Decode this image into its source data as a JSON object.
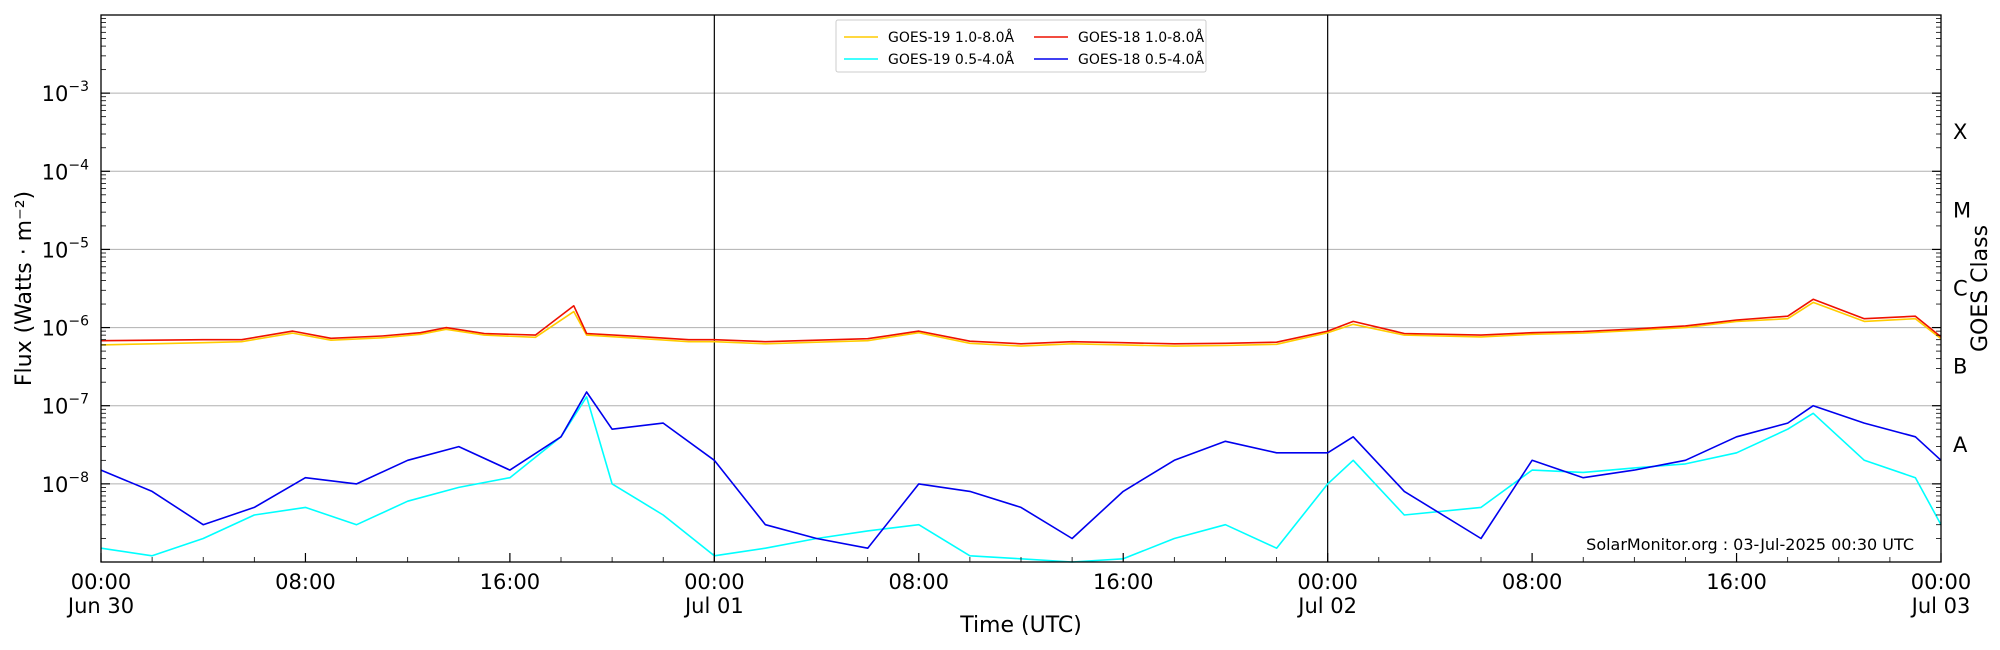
{
  "chart_data": {
    "type": "line",
    "xlabel": "Time (UTC)",
    "ylabel": "Flux (Watts · m⁻²)",
    "ylabel_right": "GOES Class",
    "yscale": "log",
    "xlim": [
      "2025-06-30T00:00",
      "2025-07-03T00:00"
    ],
    "ylim": [
      1e-09,
      0.01
    ],
    "grid": "horizontal",
    "legend_position": "top-center",
    "watermark": "SolarMonitor.org : 03-Jul-2025 00:30 UTC",
    "day_boundaries": [
      "2025-07-01T00:00",
      "2025-07-02T00:00"
    ],
    "x_ticks": [
      {
        "time": "2025-06-30T00:00",
        "label": "00:00",
        "sublabel": "Jun 30"
      },
      {
        "time": "2025-06-30T08:00",
        "label": "08:00",
        "sublabel": ""
      },
      {
        "time": "2025-06-30T16:00",
        "label": "16:00",
        "sublabel": ""
      },
      {
        "time": "2025-07-01T00:00",
        "label": "00:00",
        "sublabel": "Jul 01"
      },
      {
        "time": "2025-07-01T08:00",
        "label": "08:00",
        "sublabel": ""
      },
      {
        "time": "2025-07-01T16:00",
        "label": "16:00",
        "sublabel": ""
      },
      {
        "time": "2025-07-02T00:00",
        "label": "00:00",
        "sublabel": "Jul 02"
      },
      {
        "time": "2025-07-02T08:00",
        "label": "08:00",
        "sublabel": ""
      },
      {
        "time": "2025-07-02T16:00",
        "label": "16:00",
        "sublabel": ""
      },
      {
        "time": "2025-07-03T00:00",
        "label": "00:00",
        "sublabel": "Jul 03"
      }
    ],
    "y_ticks": [
      {
        "value": 1e-08,
        "base": "10",
        "exp": "−8"
      },
      {
        "value": 1e-07,
        "base": "10",
        "exp": "−7"
      },
      {
        "value": 1e-06,
        "base": "10",
        "exp": "−6"
      },
      {
        "value": 1e-05,
        "base": "10",
        "exp": "−5"
      },
      {
        "value": 0.0001,
        "base": "10",
        "exp": "−4"
      },
      {
        "value": 0.001,
        "base": "10",
        "exp": "−3"
      }
    ],
    "goes_classes": [
      {
        "label": "A",
        "value": 3.16e-08
      },
      {
        "label": "B",
        "value": 3.16e-07
      },
      {
        "label": "C",
        "value": 3.16e-06
      },
      {
        "label": "M",
        "value": 3.16e-05
      },
      {
        "label": "X",
        "value": 0.000316
      }
    ],
    "series": [
      {
        "name": "GOES-19 1.0-8.0Å",
        "color": "#ffcc00",
        "x": [
          "2025-06-30T00:00",
          "2025-06-30T02:00",
          "2025-06-30T04:00",
          "2025-06-30T05:30",
          "2025-06-30T07:30",
          "2025-06-30T09:00",
          "2025-06-30T11:00",
          "2025-06-30T12:30",
          "2025-06-30T13:30",
          "2025-06-30T15:00",
          "2025-06-30T17:00",
          "2025-06-30T18:30",
          "2025-06-30T19:00",
          "2025-06-30T21:00",
          "2025-06-30T23:00",
          "2025-07-01T00:00",
          "2025-07-01T02:00",
          "2025-07-01T04:00",
          "2025-07-01T06:00",
          "2025-07-01T08:00",
          "2025-07-01T10:00",
          "2025-07-01T12:00",
          "2025-07-01T14:00",
          "2025-07-01T16:00",
          "2025-07-01T18:00",
          "2025-07-01T20:00",
          "2025-07-01T22:00",
          "2025-07-02T00:00",
          "2025-07-02T01:00",
          "2025-07-02T03:00",
          "2025-07-02T06:00",
          "2025-07-02T08:00",
          "2025-07-02T10:00",
          "2025-07-02T12:00",
          "2025-07-02T14:00",
          "2025-07-02T16:00",
          "2025-07-02T18:00",
          "2025-07-02T19:00",
          "2025-07-02T21:00",
          "2025-07-02T23:00",
          "2025-07-03T00:00"
        ],
        "values": [
          6e-07,
          6.2e-07,
          6.4e-07,
          6.6e-07,
          8.5e-07,
          6.9e-07,
          7.4e-07,
          8.2e-07,
          9.5e-07,
          8e-07,
          7.5e-07,
          1.6e-06,
          8e-07,
          7.3e-07,
          6.6e-07,
          6.6e-07,
          6.2e-07,
          6.5e-07,
          6.8e-07,
          8.6e-07,
          6.3e-07,
          5.8e-07,
          6.2e-07,
          6e-07,
          5.8e-07,
          5.9e-07,
          6.1e-07,
          8.6e-07,
          1.1e-06,
          8e-07,
          7.6e-07,
          8.2e-07,
          8.5e-07,
          9.2e-07,
          1e-06,
          1.2e-06,
          1.3e-06,
          2.1e-06,
          1.2e-06,
          1.3e-06,
          7.2e-07
        ]
      },
      {
        "name": "GOES-18 1.0-8.0Å",
        "color": "#ee1100",
        "x": [
          "2025-06-30T00:00",
          "2025-06-30T02:00",
          "2025-06-30T04:00",
          "2025-06-30T05:30",
          "2025-06-30T07:30",
          "2025-06-30T09:00",
          "2025-06-30T11:00",
          "2025-06-30T12:30",
          "2025-06-30T13:30",
          "2025-06-30T15:00",
          "2025-06-30T17:00",
          "2025-06-30T18:30",
          "2025-06-30T19:00",
          "2025-06-30T21:00",
          "2025-06-30T23:00",
          "2025-07-01T00:00",
          "2025-07-01T02:00",
          "2025-07-01T04:00",
          "2025-07-01T06:00",
          "2025-07-01T08:00",
          "2025-07-01T10:00",
          "2025-07-01T12:00",
          "2025-07-01T14:00",
          "2025-07-01T16:00",
          "2025-07-01T18:00",
          "2025-07-01T20:00",
          "2025-07-01T22:00",
          "2025-07-02T00:00",
          "2025-07-02T01:00",
          "2025-07-02T03:00",
          "2025-07-02T06:00",
          "2025-07-02T08:00",
          "2025-07-02T10:00",
          "2025-07-02T12:00",
          "2025-07-02T14:00",
          "2025-07-02T16:00",
          "2025-07-02T18:00",
          "2025-07-02T19:00",
          "2025-07-02T21:00",
          "2025-07-02T23:00",
          "2025-07-03T00:00"
        ],
        "values": [
          6.8e-07,
          6.9e-07,
          7e-07,
          7e-07,
          9e-07,
          7.3e-07,
          7.8e-07,
          8.6e-07,
          1e-06,
          8.4e-07,
          8e-07,
          1.9e-06,
          8.4e-07,
          7.7e-07,
          7e-07,
          7e-07,
          6.6e-07,
          6.9e-07,
          7.2e-07,
          9e-07,
          6.7e-07,
          6.2e-07,
          6.6e-07,
          6.4e-07,
          6.2e-07,
          6.3e-07,
          6.5e-07,
          9e-07,
          1.2e-06,
          8.4e-07,
          8e-07,
          8.6e-07,
          8.9e-07,
          9.6e-07,
          1.05e-06,
          1.25e-06,
          1.4e-06,
          2.3e-06,
          1.3e-06,
          1.4e-06,
          7.6e-07
        ]
      },
      {
        "name": "GOES-19 0.5-4.0Å",
        "color": "#00ffff",
        "x": [
          "2025-06-30T00:00",
          "2025-06-30T02:00",
          "2025-06-30T04:00",
          "2025-06-30T06:00",
          "2025-06-30T08:00",
          "2025-06-30T10:00",
          "2025-06-30T12:00",
          "2025-06-30T14:00",
          "2025-06-30T16:00",
          "2025-06-30T18:00",
          "2025-06-30T19:00",
          "2025-06-30T20:00",
          "2025-06-30T22:00",
          "2025-07-01T00:00",
          "2025-07-01T02:00",
          "2025-07-01T04:00",
          "2025-07-01T06:00",
          "2025-07-01T08:00",
          "2025-07-01T10:00",
          "2025-07-01T12:00",
          "2025-07-01T14:00",
          "2025-07-01T16:00",
          "2025-07-01T18:00",
          "2025-07-01T20:00",
          "2025-07-01T22:00",
          "2025-07-02T00:00",
          "2025-07-02T01:00",
          "2025-07-02T03:00",
          "2025-07-02T06:00",
          "2025-07-02T08:00",
          "2025-07-02T10:00",
          "2025-07-02T12:00",
          "2025-07-02T14:00",
          "2025-07-02T16:00",
          "2025-07-02T18:00",
          "2025-07-02T19:00",
          "2025-07-02T21:00",
          "2025-07-02T23:00",
          "2025-07-03T00:00"
        ],
        "values": [
          1.5e-09,
          1.2e-09,
          2e-09,
          4e-09,
          5e-09,
          3e-09,
          6e-09,
          9e-09,
          1.2e-08,
          4e-08,
          1.3e-07,
          1e-08,
          4e-09,
          1.2e-09,
          1.5e-09,
          2e-09,
          2.5e-09,
          3e-09,
          1.2e-09,
          1.1e-09,
          1e-09,
          1.1e-09,
          2e-09,
          3e-09,
          1.5e-09,
          1e-08,
          2e-08,
          4e-09,
          5e-09,
          1.5e-08,
          1.4e-08,
          1.6e-08,
          1.8e-08,
          2.5e-08,
          5e-08,
          8e-08,
          2e-08,
          1.2e-08,
          3e-09
        ]
      },
      {
        "name": "GOES-18 0.5-4.0Å",
        "color": "#0000ee",
        "x": [
          "2025-06-30T00:00",
          "2025-06-30T02:00",
          "2025-06-30T04:00",
          "2025-06-30T06:00",
          "2025-06-30T08:00",
          "2025-06-30T10:00",
          "2025-06-30T12:00",
          "2025-06-30T14:00",
          "2025-06-30T16:00",
          "2025-06-30T18:00",
          "2025-06-30T19:00",
          "2025-06-30T20:00",
          "2025-06-30T22:00",
          "2025-07-01T00:00",
          "2025-07-01T02:00",
          "2025-07-01T04:00",
          "2025-07-01T06:00",
          "2025-07-01T08:00",
          "2025-07-01T10:00",
          "2025-07-01T12:00",
          "2025-07-01T14:00",
          "2025-07-01T16:00",
          "2025-07-01T18:00",
          "2025-07-01T20:00",
          "2025-07-01T22:00",
          "2025-07-02T00:00",
          "2025-07-02T01:00",
          "2025-07-02T03:00",
          "2025-07-02T06:00",
          "2025-07-02T08:00",
          "2025-07-02T10:00",
          "2025-07-02T12:00",
          "2025-07-02T14:00",
          "2025-07-02T16:00",
          "2025-07-02T18:00",
          "2025-07-02T19:00",
          "2025-07-02T21:00",
          "2025-07-02T23:00",
          "2025-07-03T00:00"
        ],
        "values": [
          1.5e-08,
          8e-09,
          3e-09,
          5e-09,
          1.2e-08,
          1e-08,
          2e-08,
          3e-08,
          1.5e-08,
          4e-08,
          1.5e-07,
          5e-08,
          6e-08,
          2e-08,
          3e-09,
          2e-09,
          1.5e-09,
          1e-08,
          8e-09,
          5e-09,
          2e-09,
          8e-09,
          2e-08,
          3.5e-08,
          2.5e-08,
          2.5e-08,
          4e-08,
          8e-09,
          2e-09,
          2e-08,
          1.2e-08,
          1.5e-08,
          2e-08,
          4e-08,
          6e-08,
          1e-07,
          6e-08,
          4e-08,
          2e-08
        ]
      }
    ]
  }
}
